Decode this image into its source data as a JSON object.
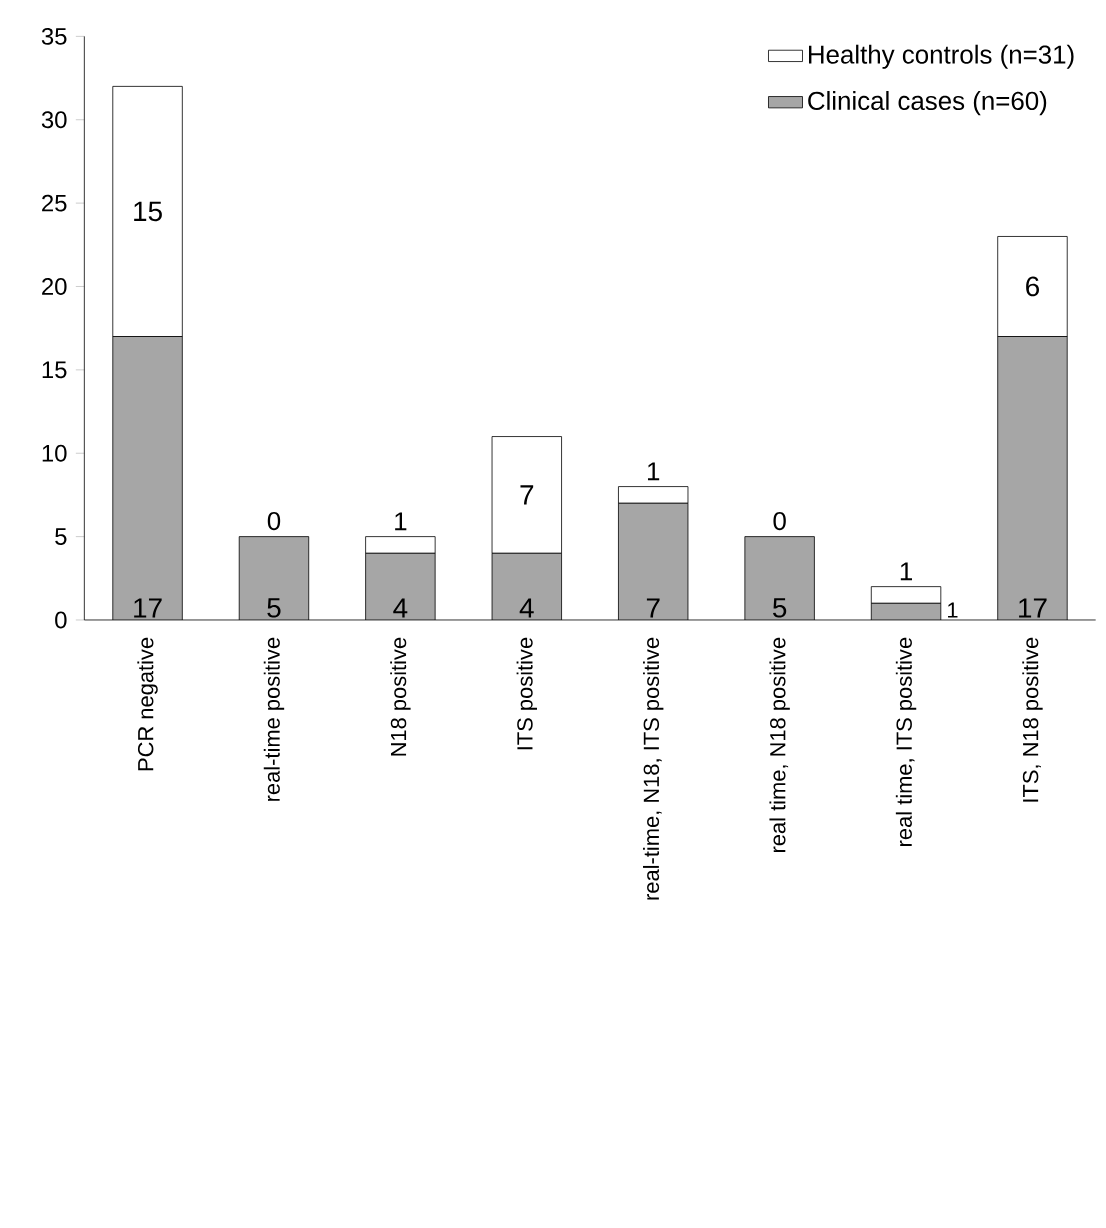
{
  "chart_data": {
    "type": "bar",
    "stacked": true,
    "categories": [
      "PCR negative",
      "real-time positive",
      "N18 positive",
      "ITS positive",
      "real-time, N18, ITS positive",
      "real time, N18 positive",
      "real time, ITS positive",
      "ITS, N18 positive"
    ],
    "series": [
      {
        "name": "Clinical cases (n=60)",
        "color": "#a6a6a6",
        "values": [
          17,
          5,
          4,
          4,
          7,
          5,
          1,
          17
        ],
        "value_labels": [
          "17",
          "5",
          "4",
          "4",
          "7",
          "5",
          "1",
          "17"
        ]
      },
      {
        "name": "Healthy controls (n=31)",
        "color": "#ffffff",
        "values": [
          15,
          0,
          1,
          7,
          1,
          0,
          1,
          6
        ],
        "value_labels": [
          "15",
          "0",
          "1",
          "7",
          "1",
          "0",
          "1",
          "6"
        ]
      }
    ],
    "ylim": [
      0,
      35
    ],
    "yticks": [
      0,
      5,
      10,
      15,
      20,
      25,
      30,
      35
    ],
    "legend": "top right"
  }
}
